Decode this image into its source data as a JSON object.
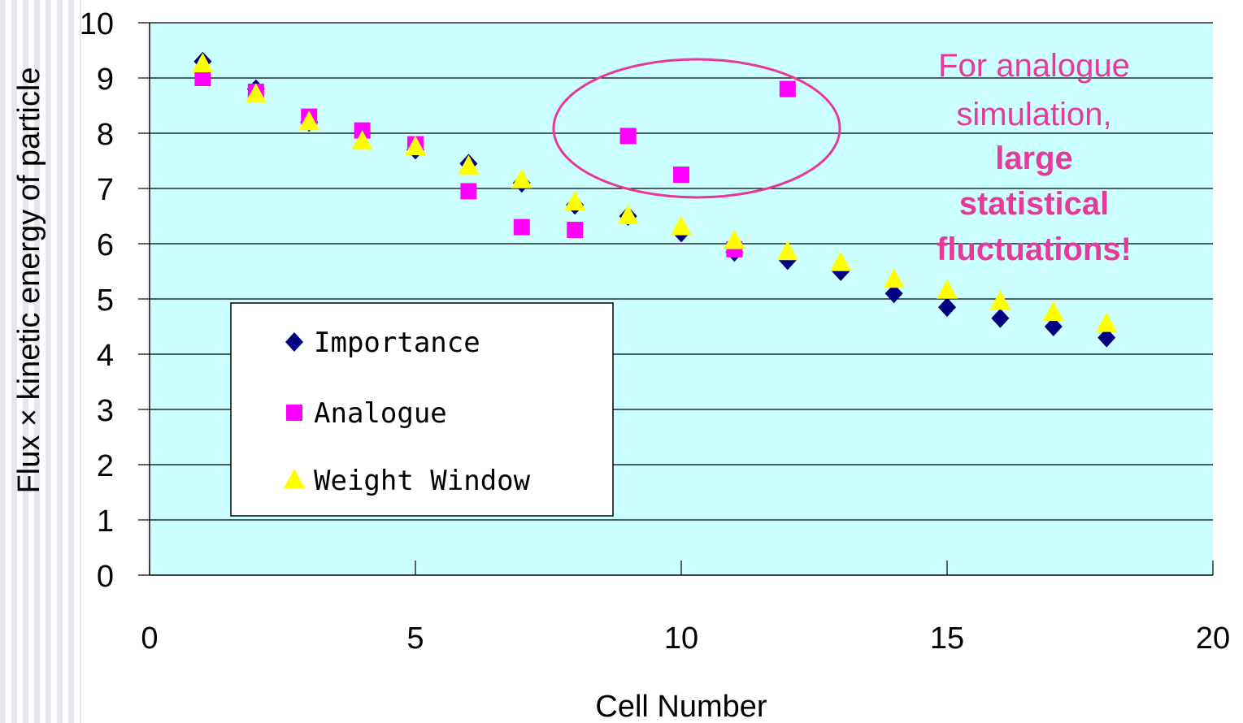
{
  "chart_data": {
    "type": "scatter",
    "xlabel": "Cell Number",
    "ylabel": "Flux × kinetic energy of particle",
    "xlim": [
      0,
      20
    ],
    "ylim": [
      0,
      10
    ],
    "xticks": [
      0,
      5,
      10,
      15,
      20
    ],
    "yticks": [
      0,
      1,
      2,
      3,
      4,
      5,
      6,
      7,
      8,
      9,
      10
    ],
    "grid": "horizontal",
    "plot_background": "#ccffff",
    "legend_position": "lower-left",
    "series": [
      {
        "name": "Importance",
        "marker": "diamond",
        "color": "#000080",
        "x": [
          1,
          2,
          3,
          4,
          5,
          6,
          7,
          8,
          9,
          10,
          11,
          12,
          13,
          14,
          15,
          16,
          17,
          18
        ],
        "y": [
          9.3,
          8.8,
          8.2,
          8.0,
          7.7,
          7.45,
          7.1,
          6.7,
          6.5,
          6.2,
          5.85,
          5.7,
          5.5,
          5.1,
          4.85,
          4.65,
          4.5,
          4.3
        ]
      },
      {
        "name": "Analogue",
        "marker": "square",
        "color": "#ff00ff",
        "x": [
          1,
          2,
          3,
          4,
          5,
          6,
          7,
          8,
          9,
          10,
          11,
          12
        ],
        "y": [
          9.0,
          8.75,
          8.3,
          8.05,
          7.8,
          6.95,
          6.3,
          6.25,
          7.95,
          7.25,
          5.9,
          8.8
        ]
      },
      {
        "name": "Weight Window",
        "marker": "triangle",
        "color": "#ffff00",
        "x": [
          1,
          2,
          3,
          4,
          5,
          6,
          7,
          8,
          9,
          10,
          11,
          12,
          13,
          14,
          15,
          16,
          17,
          18
        ],
        "y": [
          9.25,
          8.7,
          8.2,
          7.85,
          7.75,
          7.4,
          7.15,
          6.75,
          6.5,
          6.3,
          6.05,
          5.85,
          5.65,
          5.35,
          5.15,
          4.95,
          4.75,
          4.55
        ]
      }
    ],
    "annotation": {
      "lines": [
        "For analogue",
        "simulation,",
        "large",
        "statistical",
        "fluctuations!"
      ],
      "bold_from": 2,
      "color": "#e6399b",
      "ellipse_color": "#e6399b"
    }
  }
}
